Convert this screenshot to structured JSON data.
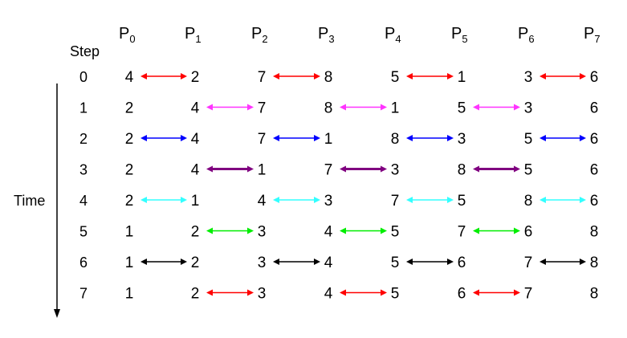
{
  "step_label": "Step",
  "time_label": "Time",
  "processors": [
    {
      "letter": "P",
      "index": "0"
    },
    {
      "letter": "P",
      "index": "1"
    },
    {
      "letter": "P",
      "index": "2"
    },
    {
      "letter": "P",
      "index": "3"
    },
    {
      "letter": "P",
      "index": "4"
    },
    {
      "letter": "P",
      "index": "5"
    },
    {
      "letter": "P",
      "index": "6"
    },
    {
      "letter": "P",
      "index": "7"
    }
  ],
  "steps": [
    {
      "step": "0",
      "values": [
        "4",
        "2",
        "7",
        "8",
        "5",
        "1",
        "3",
        "6"
      ],
      "color": "#ff0000",
      "start_pair": 0
    },
    {
      "step": "1",
      "values": [
        "2",
        "4",
        "7",
        "8",
        "1",
        "5",
        "3",
        "6"
      ],
      "color": "#ff33ff",
      "start_pair": 1
    },
    {
      "step": "2",
      "values": [
        "2",
        "4",
        "7",
        "1",
        "8",
        "3",
        "5",
        "6"
      ],
      "color": "#0000ff",
      "start_pair": 0
    },
    {
      "step": "3",
      "values": [
        "2",
        "4",
        "1",
        "7",
        "3",
        "8",
        "5",
        "6"
      ],
      "color": "#800080",
      "start_pair": 1
    },
    {
      "step": "4",
      "values": [
        "2",
        "1",
        "4",
        "3",
        "7",
        "5",
        "8",
        "6"
      ],
      "color": "#33ffff",
      "start_pair": 0
    },
    {
      "step": "5",
      "values": [
        "1",
        "2",
        "3",
        "4",
        "5",
        "7",
        "6",
        "8"
      ],
      "color": "#00ee00",
      "start_pair": 1
    },
    {
      "step": "6",
      "values": [
        "1",
        "2",
        "3",
        "4",
        "5",
        "6",
        "7",
        "8"
      ],
      "color": "#000000",
      "start_pair": 0
    },
    {
      "step": "7",
      "values": [
        "1",
        "2",
        "3",
        "4",
        "5",
        "6",
        "7",
        "8"
      ],
      "color": "#ff0000",
      "start_pair": 1
    }
  ]
}
